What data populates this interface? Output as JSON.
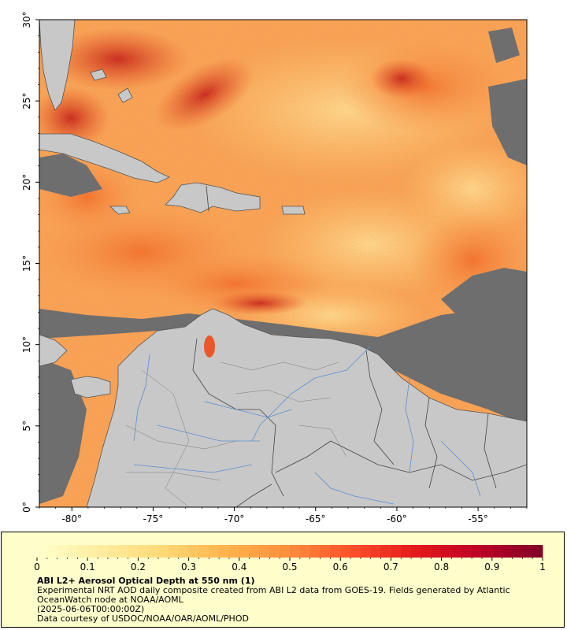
{
  "map": {
    "lon_range": [
      -82,
      -52
    ],
    "lat_range": [
      0,
      30
    ],
    "x_ticks": [
      {
        "value": -80,
        "label": "-80°"
      },
      {
        "value": -75,
        "label": "-75°"
      },
      {
        "value": -70,
        "label": "-70°"
      },
      {
        "value": -65,
        "label": "-65°"
      },
      {
        "value": -60,
        "label": "-60°"
      },
      {
        "value": -55,
        "label": "-55°"
      }
    ],
    "y_ticks": [
      {
        "value": 0,
        "label": "0°"
      },
      {
        "value": 5,
        "label": "5°"
      },
      {
        "value": 10,
        "label": "10°"
      },
      {
        "value": 15,
        "label": "15°"
      },
      {
        "value": 20,
        "label": "20°"
      },
      {
        "value": 25,
        "label": "25°"
      },
      {
        "value": 30,
        "label": "30°"
      }
    ],
    "colors": {
      "land": "#c8c8c8",
      "no_data": "#6e6e6e",
      "border": "#555555",
      "river": "#5b8fd0"
    }
  },
  "colorbar": {
    "range": [
      0,
      1
    ],
    "tick_labels": [
      "0",
      "0.1",
      "0.2",
      "0.3",
      "0.4",
      "0.5",
      "0.6",
      "0.7",
      "0.8",
      "0.9",
      "1"
    ],
    "colors": [
      "#ffffcc",
      "#ffeda0",
      "#fed976",
      "#feb24c",
      "#fd8d3c",
      "#fc4e2a",
      "#e31a1c",
      "#bd0026",
      "#800026"
    ]
  },
  "caption": {
    "title": "ABI L2+ Aerosol Optical Depth at 550 nm (1)",
    "line1": "Experimental NRT AOD daily composite created from ABI L2 data from GOES-19. Fields generated by Atlantic",
    "line2": "OceanWatch node at NOAA/AOML",
    "line3": "(2025-06-06T00:00:00Z)",
    "line4": "Data courtesy of USDOC/NOAA/OAR/AOML/PHOD"
  }
}
